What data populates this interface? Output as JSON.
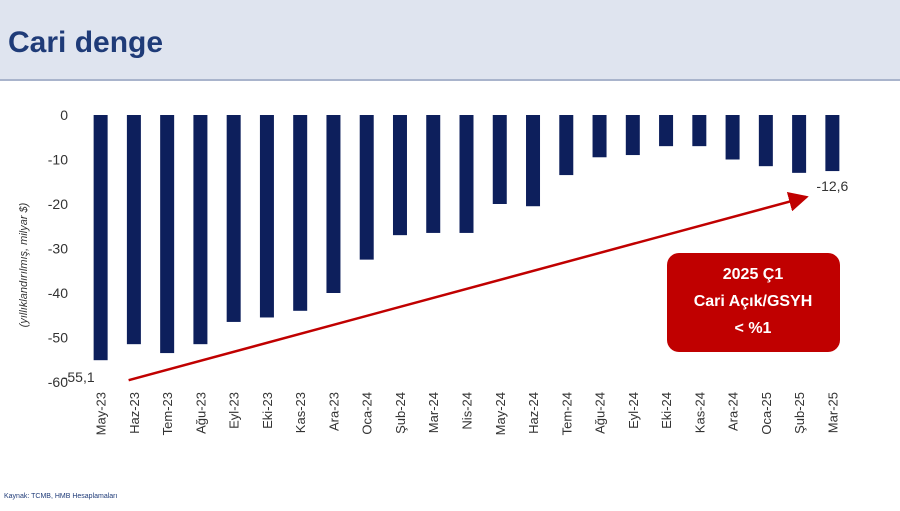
{
  "title": "Cari denge",
  "source": "Kaynak: TCMB, HMB Hesaplamaları",
  "callout": [
    "2025 Ç1",
    "Cari Açık/GSYH",
    "< %1"
  ],
  "chart_data": {
    "type": "bar",
    "y_label": "(yıllıklandırılmış, milyar $)",
    "categories": [
      "May-23",
      "Haz-23",
      "Tem-23",
      "Ağu-23",
      "Eyl-23",
      "Eki-23",
      "Kas-23",
      "Ara-23",
      "Oca-24",
      "Şub-24",
      "Mar-24",
      "Nis-24",
      "May-24",
      "Haz-24",
      "Tem-24",
      "Ağu-24",
      "Eyl-24",
      "Eki-24",
      "Kas-24",
      "Ara-24",
      "Oca-25",
      "Şub-25",
      "Mar-25"
    ],
    "values": [
      -55.1,
      -51.5,
      -53.5,
      -51.5,
      -46.5,
      -45.5,
      -44,
      -40,
      -32.5,
      -27,
      -26.5,
      -26.5,
      -20,
      -20.5,
      -13.5,
      -9.5,
      -9,
      -7,
      -7,
      -10,
      -11.5,
      -13,
      -12.6
    ],
    "value_labels": [
      "-55,1",
      null,
      null,
      null,
      null,
      null,
      null,
      null,
      null,
      null,
      null,
      null,
      null,
      null,
      null,
      null,
      null,
      null,
      null,
      null,
      null,
      null,
      "-12,6"
    ],
    "color": "#0d1f5c",
    "trend_color": "#c00000",
    "ylim": [
      -60,
      0
    ],
    "yticks": [
      0,
      -10,
      -20,
      -30,
      -40,
      -50,
      -60
    ],
    "grid": false
  }
}
